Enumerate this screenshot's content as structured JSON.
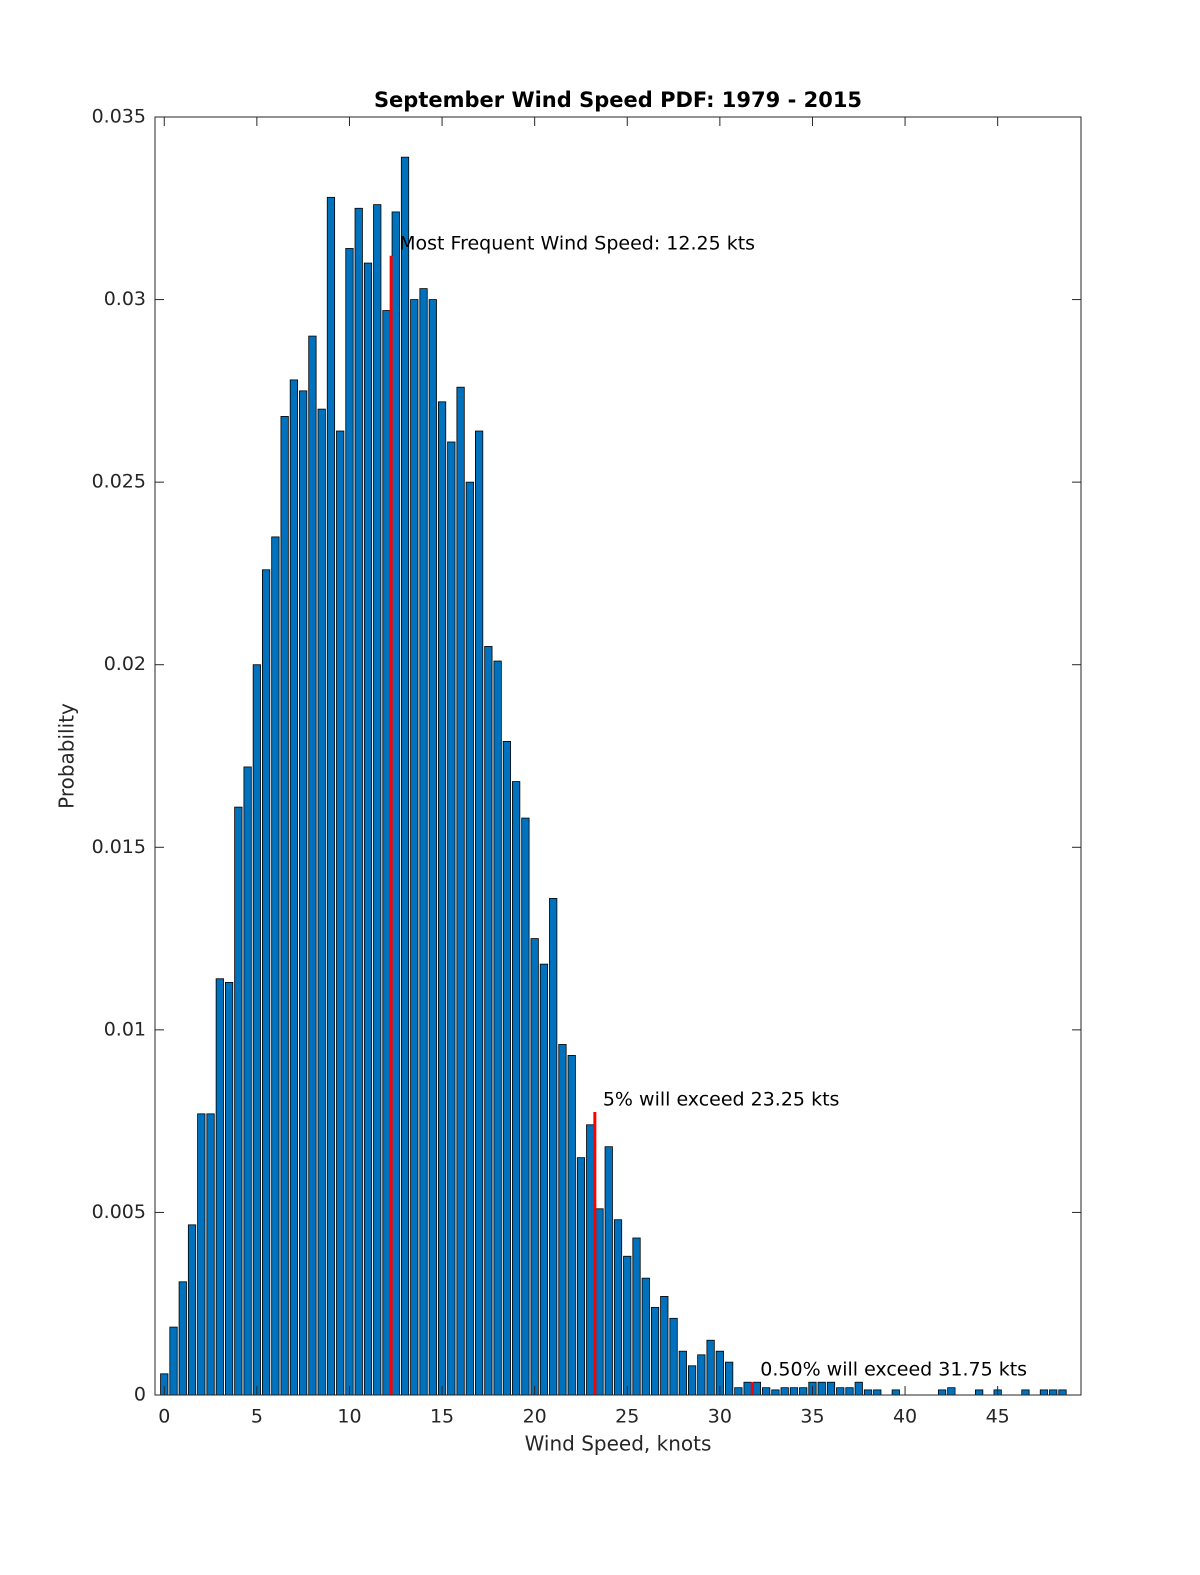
{
  "chart_data": {
    "type": "bar",
    "title": "September Wind Speed PDF: 1979 - 2015",
    "x_label": "Wind Speed, knots",
    "y_label": "Probability",
    "color": "#0072bd",
    "x": [
      0,
      0.5,
      1,
      1.5,
      2,
      2.5,
      3,
      3.5,
      4,
      4.5,
      5,
      5.5,
      6,
      6.5,
      7,
      7.5,
      8,
      8.5,
      9,
      9.5,
      10,
      10.5,
      11,
      11.5,
      12,
      12.5,
      13,
      13.5,
      14,
      14.5,
      15,
      15.5,
      16,
      16.5,
      17,
      17.5,
      18,
      18.5,
      19,
      19.5,
      20,
      20.5,
      21,
      21.5,
      22,
      22.5,
      23,
      23.5,
      24,
      24.5,
      25,
      25.5,
      26,
      26.5,
      27,
      27.5,
      28,
      28.5,
      29,
      29.5,
      30,
      30.5,
      31,
      31.5,
      32,
      32.5,
      33,
      33.5,
      34,
      34.5,
      35,
      35.5,
      36,
      36.5,
      37,
      37.5,
      38,
      38.5,
      39,
      39.5,
      40,
      40.5,
      41,
      41.5,
      42,
      42.5,
      43,
      43.5,
      44,
      44.5,
      45,
      45.5,
      46,
      46.5,
      47,
      47.5,
      48,
      48.5
    ],
    "values": [
      0.00058,
      0.00186,
      0.0031,
      0.00466,
      0.0077,
      0.0077,
      0.0114,
      0.0113,
      0.0161,
      0.0172,
      0.02,
      0.0226,
      0.0235,
      0.0268,
      0.0278,
      0.0275,
      0.029,
      0.027,
      0.0328,
      0.0264,
      0.0314,
      0.0325,
      0.031,
      0.0326,
      0.0297,
      0.0324,
      0.0339,
      0.03,
      0.0303,
      0.03,
      0.0272,
      0.0261,
      0.0276,
      0.025,
      0.0264,
      0.0205,
      0.0201,
      0.0179,
      0.0168,
      0.0158,
      0.0125,
      0.0118,
      0.0136,
      0.0096,
      0.0093,
      0.0065,
      0.0074,
      0.0051,
      0.0068,
      0.0048,
      0.0038,
      0.0043,
      0.0032,
      0.0024,
      0.0027,
      0.0021,
      0.0012,
      0.0008,
      0.0011,
      0.0015,
      0.0012,
      0.0009,
      0.0002,
      0.00035,
      0.00035,
      0.0002,
      0.00014,
      0.0002,
      0.0002,
      0.0002,
      0.00035,
      0.00035,
      0.00035,
      0.0002,
      0.0002,
      0.00035,
      0.00014,
      0.00014,
      0,
      0.00014,
      0,
      0,
      0,
      0,
      0.00014,
      0.0002,
      0,
      0,
      0.00014,
      0,
      0.00014,
      0,
      0,
      0.00014,
      0,
      0.00014,
      0.00014,
      0.00014
    ],
    "xlim": [
      -0.5,
      49.5
    ],
    "ylim": [
      0,
      0.035
    ],
    "xticks": [
      0,
      5,
      10,
      15,
      20,
      25,
      30,
      35,
      40,
      45
    ],
    "yticks": [
      0,
      0.005,
      0.01,
      0.015,
      0.02,
      0.025,
      0.03,
      0.035
    ],
    "markers": [
      {
        "x": 12.25,
        "y": 0.0312,
        "label": "Most Frequent Wind Speed: 12.25 kts",
        "color": "#ff0000"
      },
      {
        "x": 23.25,
        "y": 0.00775,
        "label": "5% will exceed 23.25 kts",
        "color": "#ff0000"
      },
      {
        "x": 31.75,
        "y": 0.00035,
        "label": "0.50% will exceed 31.75 kts",
        "color": "#ff0000"
      }
    ]
  }
}
